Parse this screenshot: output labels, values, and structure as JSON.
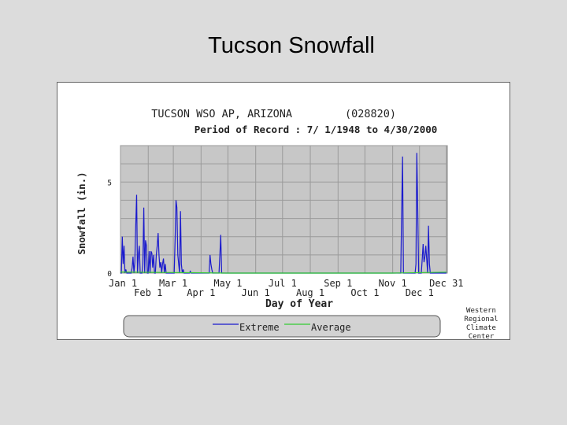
{
  "page": {
    "title": "Tucson Snowfall"
  },
  "chart_data": {
    "type": "line",
    "title": "TUCSON WSO AP, ARIZONA",
    "station_id": "(028820)",
    "subtitle": "Period of Record : 7/ 1/1948 to 4/30/2000",
    "xlabel": "Day of Year",
    "ylabel": "Snowfall (in.)",
    "ylim": [
      0,
      7
    ],
    "xlim": [
      1,
      366
    ],
    "grid": true,
    "y_ticks": [
      {
        "value": 0,
        "label": "0"
      },
      {
        "value": 5,
        "label": "5"
      }
    ],
    "x_ticks": [
      {
        "day": 1,
        "label": "Jan 1",
        "row": 1
      },
      {
        "day": 32,
        "label": "Feb 1",
        "row": 2
      },
      {
        "day": 60,
        "label": "Mar 1",
        "row": 1
      },
      {
        "day": 91,
        "label": "Apr 1",
        "row": 2
      },
      {
        "day": 121,
        "label": "May 1",
        "row": 1
      },
      {
        "day": 152,
        "label": "Jun 1",
        "row": 2
      },
      {
        "day": 182,
        "label": "Jul 1",
        "row": 1
      },
      {
        "day": 213,
        "label": "Aug 1",
        "row": 2
      },
      {
        "day": 244,
        "label": "Sep 1",
        "row": 1
      },
      {
        "day": 274,
        "label": "Oct 1",
        "row": 2
      },
      {
        "day": 305,
        "label": "Nov 1",
        "row": 1
      },
      {
        "day": 335,
        "label": "Dec 1",
        "row": 2
      },
      {
        "day": 365,
        "label": "Dec 31",
        "row": 1
      }
    ],
    "legend": {
      "position": "bottom",
      "entries": [
        {
          "label": "Extreme",
          "color": "#1a1acd"
        },
        {
          "label": "Average",
          "color": "#33cc33"
        }
      ]
    },
    "credit": [
      "Western",
      "Regional",
      "Climate",
      "Center"
    ],
    "series": [
      {
        "name": "Extreme",
        "color": "#1a1acd",
        "points": [
          [
            1,
            0
          ],
          [
            2,
            0
          ],
          [
            3,
            2.0
          ],
          [
            4,
            0.5
          ],
          [
            5,
            1.5
          ],
          [
            6,
            0
          ],
          [
            7,
            0.2
          ],
          [
            8,
            0
          ],
          [
            9,
            0
          ],
          [
            10,
            0
          ],
          [
            11,
            0
          ],
          [
            12,
            0
          ],
          [
            13,
            0
          ],
          [
            14,
            0.3
          ],
          [
            15,
            0.9
          ],
          [
            16,
            0
          ],
          [
            17,
            0.6
          ],
          [
            18,
            2.5
          ],
          [
            19,
            4.3
          ],
          [
            20,
            0
          ],
          [
            21,
            1.0
          ],
          [
            22,
            1.5
          ],
          [
            23,
            0
          ],
          [
            24,
            0
          ],
          [
            25,
            0
          ],
          [
            26,
            0.5
          ],
          [
            27,
            3.6
          ],
          [
            28,
            0
          ],
          [
            29,
            1.8
          ],
          [
            30,
            1.5
          ],
          [
            31,
            0
          ],
          [
            32,
            0
          ],
          [
            33,
            1.2
          ],
          [
            34,
            0
          ],
          [
            35,
            1.2
          ],
          [
            36,
            1.1
          ],
          [
            37,
            0.3
          ],
          [
            38,
            1.0
          ],
          [
            39,
            0
          ],
          [
            40,
            0
          ],
          [
            41,
            1.0
          ],
          [
            42,
            1.5
          ],
          [
            43,
            2.2
          ],
          [
            44,
            1.0
          ],
          [
            45,
            0.3
          ],
          [
            46,
            0.6
          ],
          [
            47,
            0
          ],
          [
            48,
            0.5
          ],
          [
            49,
            0.8
          ],
          [
            50,
            0
          ],
          [
            51,
            0.5
          ],
          [
            52,
            0
          ],
          [
            53,
            0
          ],
          [
            54,
            0
          ],
          [
            55,
            0
          ],
          [
            56,
            0
          ],
          [
            57,
            0
          ],
          [
            58,
            0
          ],
          [
            59,
            0
          ],
          [
            60,
            0
          ],
          [
            61,
            0
          ],
          [
            62,
            1.9
          ],
          [
            63,
            4.0
          ],
          [
            64,
            3.6
          ],
          [
            65,
            1.0
          ],
          [
            66,
            0.5
          ],
          [
            67,
            0
          ],
          [
            68,
            3.4
          ],
          [
            69,
            0.5
          ],
          [
            70,
            0
          ],
          [
            71,
            0.2
          ],
          [
            72,
            0
          ],
          [
            73,
            0
          ],
          [
            74,
            0
          ],
          [
            75,
            0
          ],
          [
            76,
            0
          ],
          [
            77,
            0
          ],
          [
            78,
            0
          ],
          [
            79,
            0.1
          ],
          [
            80,
            0
          ],
          [
            81,
            0
          ],
          [
            82,
            0
          ],
          [
            83,
            0
          ],
          [
            84,
            0
          ],
          [
            85,
            0
          ],
          [
            86,
            0
          ],
          [
            87,
            0
          ],
          [
            88,
            0
          ],
          [
            89,
            0
          ],
          [
            90,
            0
          ],
          [
            91,
            0
          ],
          [
            92,
            0
          ],
          [
            93,
            0
          ],
          [
            94,
            0
          ],
          [
            95,
            0
          ],
          [
            96,
            0
          ],
          [
            97,
            0
          ],
          [
            98,
            0
          ],
          [
            99,
            0
          ],
          [
            100,
            0
          ],
          [
            101,
            1.0
          ],
          [
            102,
            0.5
          ],
          [
            103,
            0.2
          ],
          [
            104,
            0
          ],
          [
            105,
            0
          ],
          [
            106,
            0
          ],
          [
            107,
            0
          ],
          [
            108,
            0
          ],
          [
            109,
            0
          ],
          [
            110,
            0
          ],
          [
            111,
            0
          ],
          [
            112,
            1.0
          ],
          [
            113,
            2.1
          ],
          [
            114,
            0
          ],
          [
            115,
            0
          ],
          [
            120,
            0
          ],
          [
            150,
            0
          ],
          [
            200,
            0
          ],
          [
            250,
            0
          ],
          [
            300,
            0
          ],
          [
            305,
            0
          ],
          [
            306,
            0
          ],
          [
            307,
            0
          ],
          [
            308,
            0
          ],
          [
            309,
            0
          ],
          [
            310,
            0
          ],
          [
            311,
            0
          ],
          [
            312,
            0
          ],
          [
            313,
            0
          ],
          [
            314,
            0
          ],
          [
            315,
            3.3
          ],
          [
            316,
            6.4
          ],
          [
            317,
            0
          ],
          [
            318,
            0
          ],
          [
            319,
            0
          ],
          [
            320,
            0
          ],
          [
            321,
            0
          ],
          [
            322,
            0
          ],
          [
            323,
            0
          ],
          [
            324,
            0
          ],
          [
            325,
            0
          ],
          [
            326,
            0
          ],
          [
            327,
            0
          ],
          [
            328,
            0
          ],
          [
            329,
            0
          ],
          [
            330,
            0
          ],
          [
            331,
            0.5
          ],
          [
            332,
            6.6
          ],
          [
            333,
            3.4
          ],
          [
            334,
            0
          ],
          [
            335,
            0
          ],
          [
            336,
            0
          ],
          [
            337,
            0
          ],
          [
            338,
            0.8
          ],
          [
            339,
            1.6
          ],
          [
            340,
            0.6
          ],
          [
            341,
            0.9
          ],
          [
            342,
            1.5
          ],
          [
            343,
            0.8
          ],
          [
            344,
            0
          ],
          [
            345,
            2.6
          ],
          [
            346,
            0.5
          ],
          [
            347,
            0
          ],
          [
            348,
            0
          ],
          [
            349,
            0
          ],
          [
            365,
            0
          ]
        ]
      },
      {
        "name": "Average",
        "color": "#33cc33",
        "points": [
          [
            1,
            0.06
          ],
          [
            60,
            0.03
          ],
          [
            120,
            0
          ],
          [
            305,
            0
          ],
          [
            365,
            0.05
          ]
        ]
      }
    ]
  }
}
